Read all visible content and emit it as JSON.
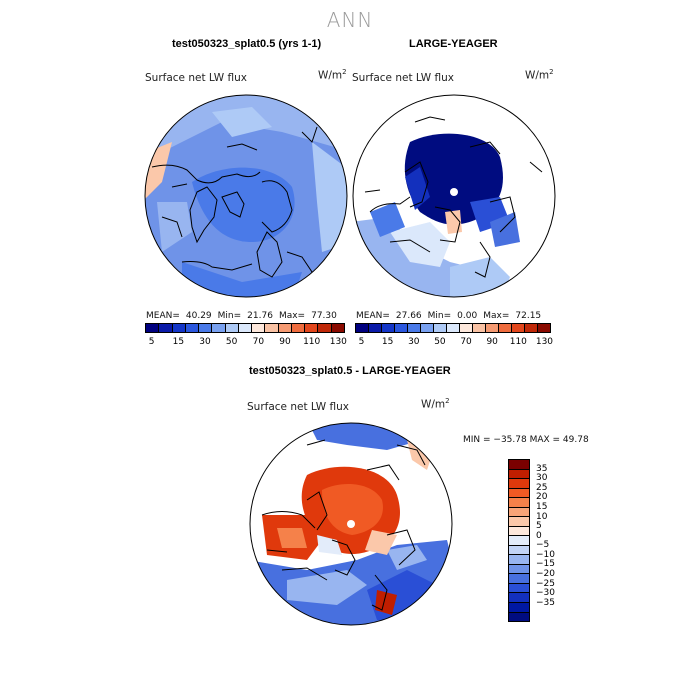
{
  "page": {
    "title": "ANN"
  },
  "panels": [
    {
      "title": "test050323_splat0.5 (yrs 1-1)",
      "variable": "Surface net LW flux",
      "units_base": "W/m",
      "units_exp": "2",
      "stats": {
        "mean_label": "MEAN=",
        "mean": "40.29",
        "min_label": "Min=",
        "min": "21.76",
        "max_label": "Max=",
        "max": "77.30"
      }
    },
    {
      "title": "LARGE-YEAGER",
      "variable": "Surface net LW flux",
      "units_base": "W/m",
      "units_exp": "2",
      "stats": {
        "mean_label": "MEAN=",
        "mean": "27.66",
        "min_label": "Min=",
        "min": "0.00",
        "max_label": "Max=",
        "max": "72.15"
      }
    }
  ],
  "diff_panel": {
    "title": "test050323_splat0.5 - LARGE-YEAGER",
    "variable": "Surface net LW flux",
    "units_base": "W/m",
    "units_exp": "2",
    "range_text": "MIN = −35.78 MAX =  49.78"
  },
  "colorbar_top": {
    "colors": [
      "#00007f",
      "#0a1aa8",
      "#1436c8",
      "#2b57de",
      "#4a7ae8",
      "#79a1f0",
      "#aecaf6",
      "#dbe8fb",
      "#fde8dc",
      "#f9c2a4",
      "#f59a72",
      "#ef6c3e",
      "#e2461c",
      "#c02808",
      "#8a0a00"
    ],
    "tick_labels": [
      "5",
      "15",
      "30",
      "50",
      "70",
      "90",
      "110",
      "130"
    ]
  },
  "colorbar_diff": {
    "colors": [
      "#7a0000",
      "#c01e00",
      "#e0390c",
      "#f05a24",
      "#f5814a",
      "#f8a478",
      "#fbc8aa",
      "#fde8dc",
      "#e3ecfa",
      "#c2d4f6",
      "#98b5f0",
      "#6f93e8",
      "#4870df",
      "#2a4fd6",
      "#1330bd",
      "#0018a2",
      "#000c80"
    ],
    "tick_labels": [
      "35",
      "30",
      "25",
      "20",
      "15",
      "10",
      "5",
      "0",
      "−5",
      "−10",
      "−15",
      "−20",
      "−25",
      "−30",
      "−35"
    ]
  }
}
